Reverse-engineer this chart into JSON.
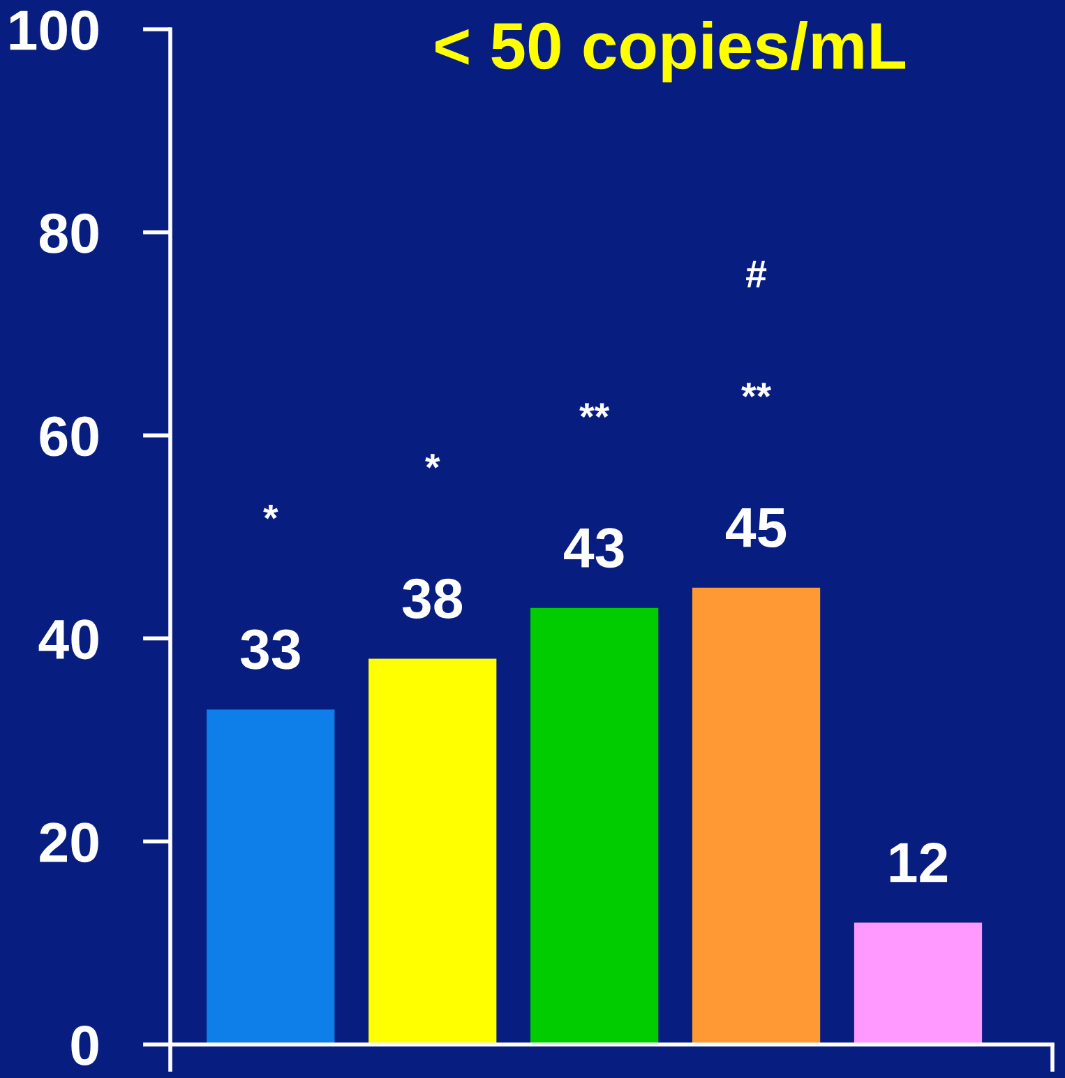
{
  "chart_data": {
    "type": "bar",
    "title": "< 50 copies/mL",
    "categories": [
      null,
      null,
      null,
      null,
      null
    ],
    "values": [
      33,
      38,
      43,
      45,
      12
    ],
    "colors": [
      "#0e7fe8",
      "#ffff00",
      "#00cc00",
      "#ff9933",
      "#ff99ff"
    ],
    "ylim": [
      0,
      100
    ],
    "yticks": [
      0,
      20,
      40,
      60,
      80,
      100
    ],
    "data_labels": true,
    "grid": false,
    "legend": false,
    "annotations": [
      "*",
      "*",
      "**",
      "**",
      "#"
    ]
  }
}
